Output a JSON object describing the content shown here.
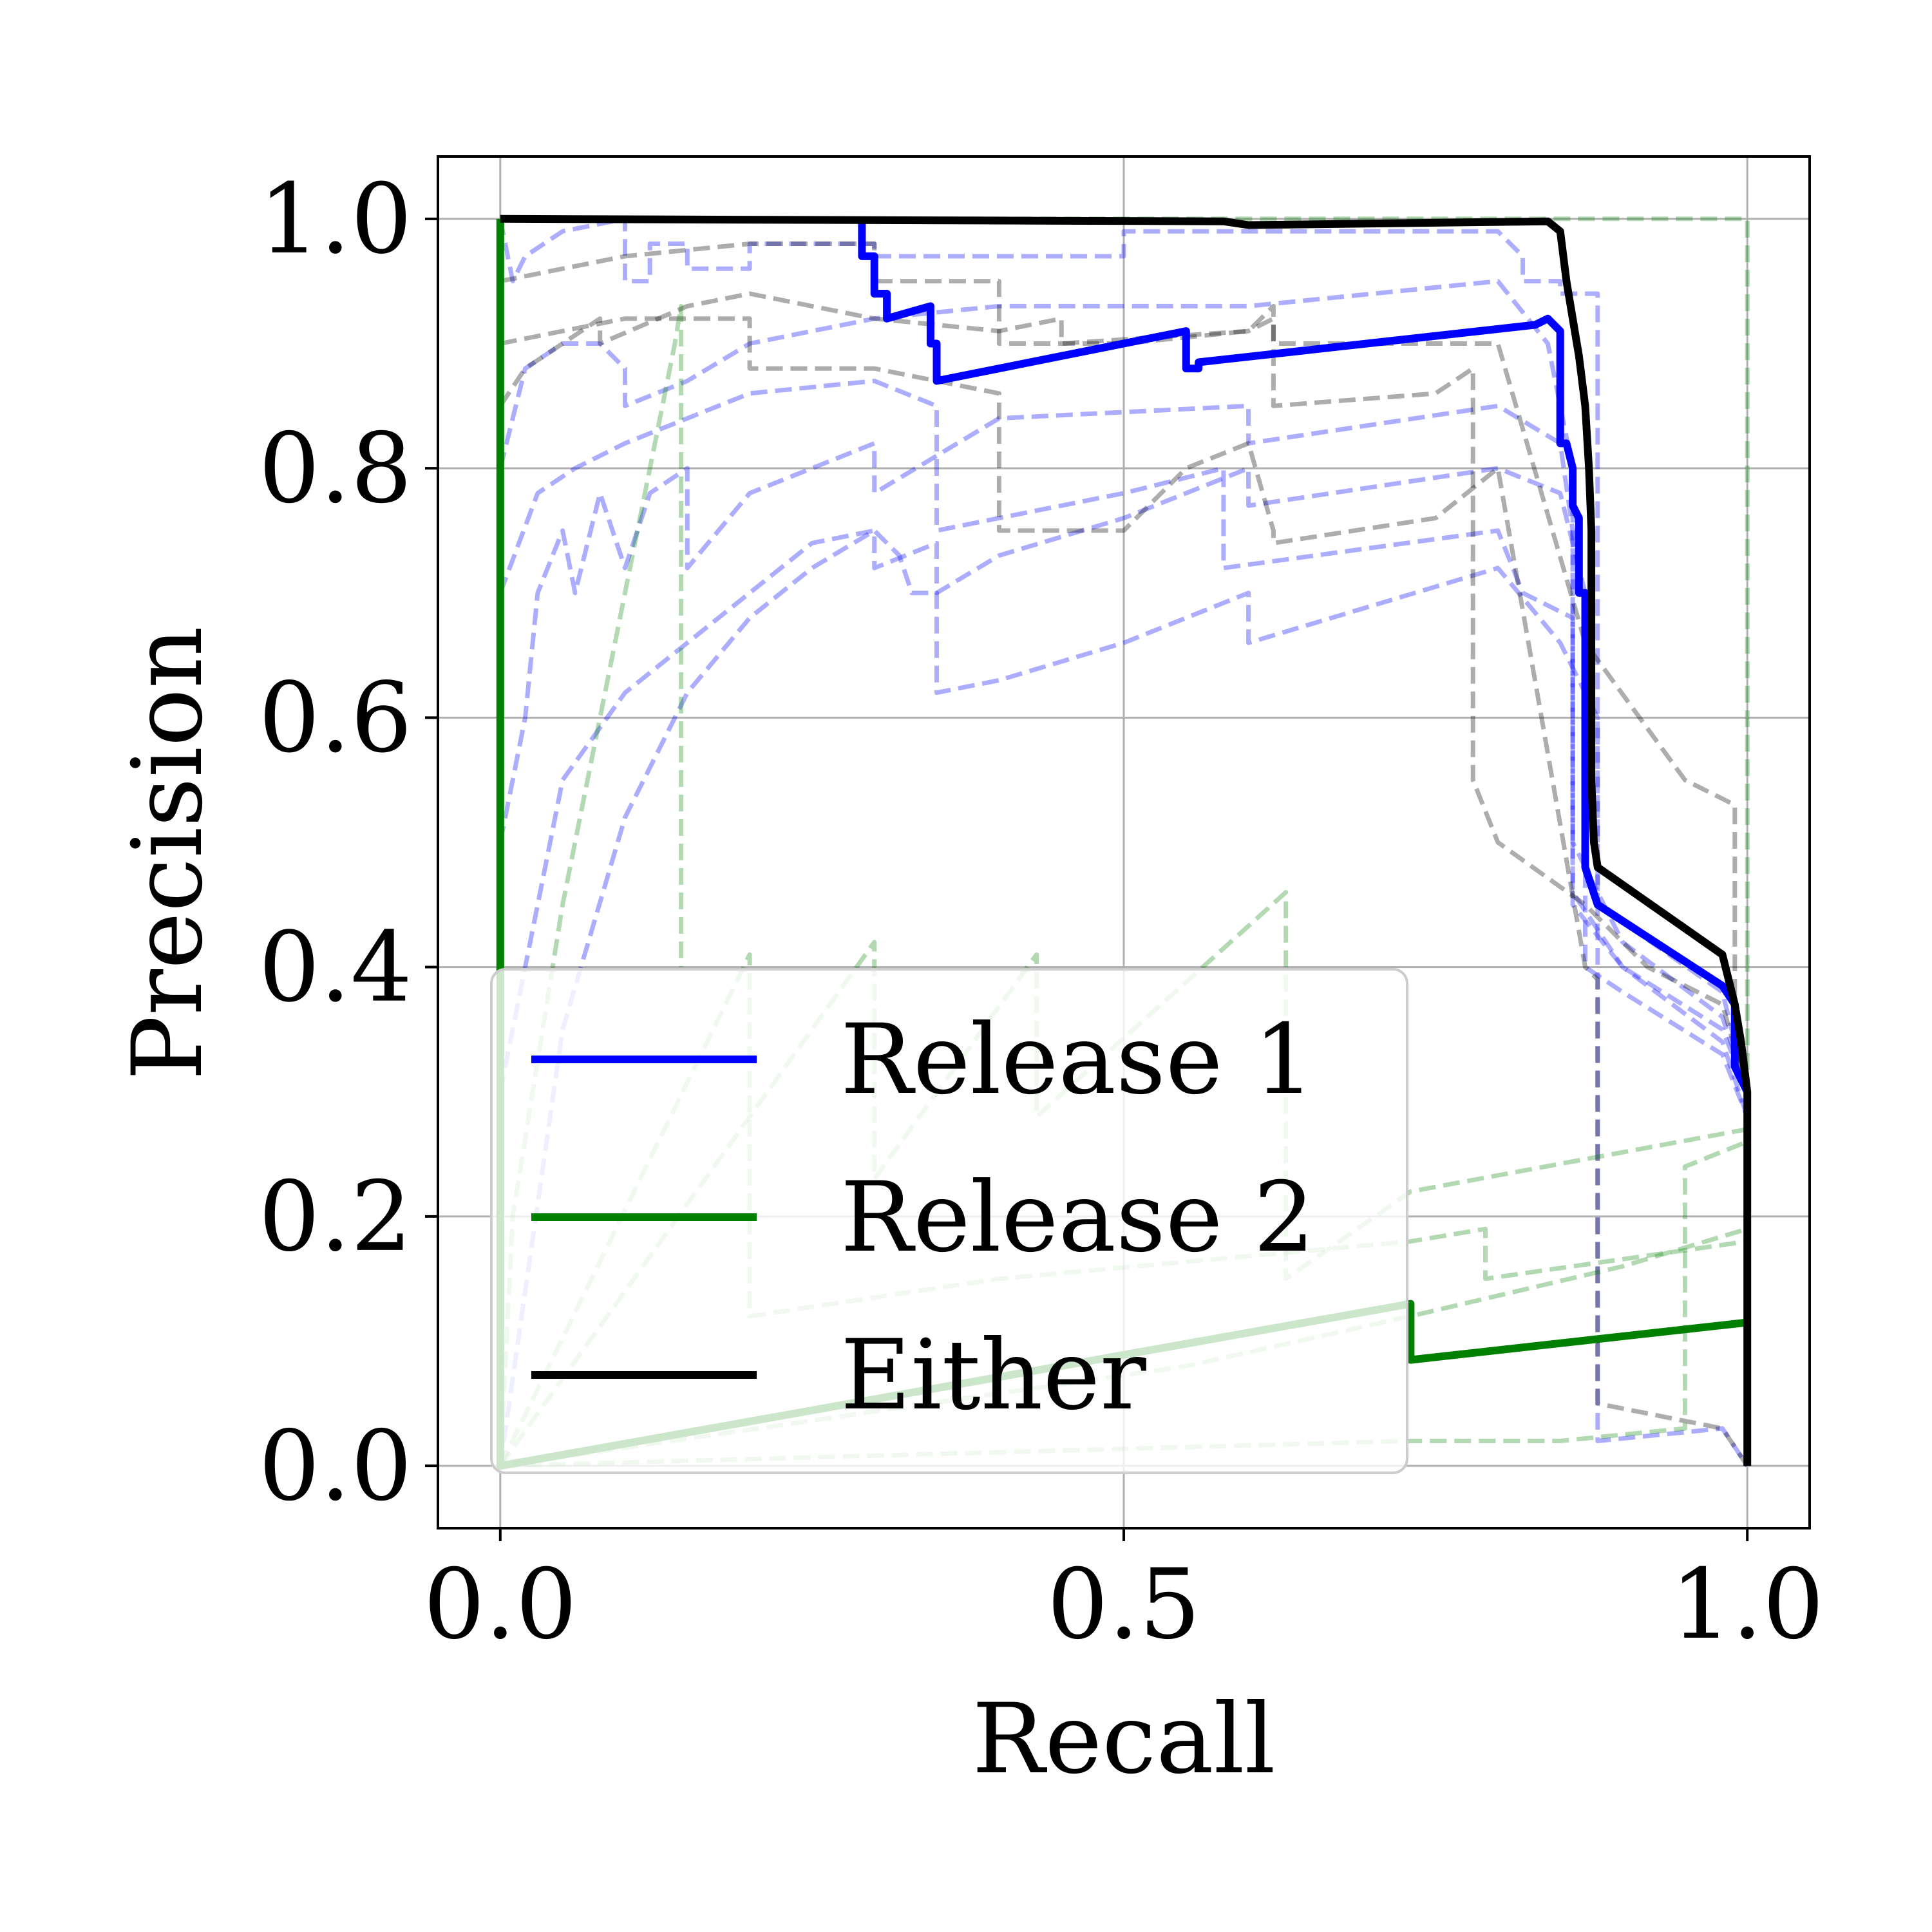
{
  "chart_data": {
    "type": "line",
    "xlabel": "Recall",
    "ylabel": "Precision",
    "xlim": [
      -0.05,
      1.05
    ],
    "ylim": [
      -0.05,
      1.05
    ],
    "xticks": [
      "0.0",
      "0.5",
      "1.0"
    ],
    "xtick_values": [
      0.0,
      0.5,
      1.0
    ],
    "yticks": [
      "0.0",
      "0.2",
      "0.4",
      "0.6",
      "0.8",
      "1.0"
    ],
    "ytick_values": [
      0.0,
      0.2,
      0.4,
      0.6,
      0.8,
      1.0
    ],
    "grid": true,
    "legend_position": "lower-left",
    "colors": {
      "release1": "#0000ff",
      "release2": "#008000",
      "either": "#000000"
    },
    "series": [
      {
        "name": "Release 1",
        "color": "#0000ff",
        "x": [
          0.29,
          0.29,
          0.3,
          0.3,
          0.31,
          0.31,
          0.345,
          0.345,
          0.35,
          0.35,
          0.55,
          0.55,
          0.56,
          0.56,
          0.83,
          0.84,
          0.85,
          0.85,
          0.855,
          0.86,
          0.86,
          0.865,
          0.865,
          0.87,
          0.87,
          0.88,
          0.98,
          0.99,
          0.99,
          1.0
        ],
        "y": [
          1.0,
          0.97,
          0.97,
          0.94,
          0.94,
          0.92,
          0.93,
          0.9,
          0.9,
          0.87,
          0.91,
          0.88,
          0.88,
          0.885,
          0.915,
          0.92,
          0.91,
          0.82,
          0.82,
          0.8,
          0.77,
          0.76,
          0.7,
          0.7,
          0.48,
          0.45,
          0.385,
          0.37,
          0.32,
          0.3
        ]
      },
      {
        "name": "Release 2",
        "color": "#008000",
        "x": [
          0.0,
          0.0,
          0.0,
          0.73,
          0.73,
          0.73,
          1.0
        ],
        "y": [
          1.0,
          0.4,
          0.0,
          0.13,
          0.13,
          0.085,
          0.115
        ]
      },
      {
        "name": "Either",
        "color": "#000000",
        "x": [
          0.0,
          0.58,
          0.6,
          0.84,
          0.85,
          0.855,
          0.86,
          0.865,
          0.87,
          0.873,
          0.875,
          0.875,
          0.877,
          0.88,
          0.88,
          0.98,
          0.99,
          0.995,
          1.0,
          1.0,
          1.0
        ],
        "y": [
          1.0,
          0.998,
          0.995,
          0.998,
          0.99,
          0.95,
          0.92,
          0.89,
          0.85,
          0.8,
          0.75,
          0.55,
          0.5,
          0.48,
          0.48,
          0.41,
          0.37,
          0.34,
          0.3,
          0.15,
          0.0
        ]
      }
    ],
    "background_series": [
      {
        "group": "release1",
        "x": [
          0.0,
          0.01,
          0.02,
          0.05,
          0.1,
          0.1,
          0.12,
          0.12,
          0.15,
          0.15,
          0.2,
          0.2,
          0.3,
          0.3,
          0.5,
          0.5,
          0.6,
          0.8,
          0.82,
          0.82,
          0.85,
          0.85,
          0.88,
          0.88,
          0.98,
          1.0
        ],
        "y": [
          1.0,
          0.95,
          0.97,
          0.99,
          1.0,
          0.95,
          0.95,
          0.98,
          0.98,
          0.96,
          0.96,
          0.98,
          0.98,
          0.97,
          0.97,
          0.99,
          0.99,
          0.99,
          0.97,
          0.95,
          0.95,
          0.94,
          0.94,
          0.45,
          0.38,
          0.3
        ]
      },
      {
        "group": "release1",
        "x": [
          0.0,
          0.02,
          0.05,
          0.08,
          0.1,
          0.1,
          0.15,
          0.2,
          0.3,
          0.4,
          0.5,
          0.6,
          0.7,
          0.8,
          0.84,
          0.86,
          0.86,
          0.9,
          0.98,
          1.0
        ],
        "y": [
          0.8,
          0.88,
          0.9,
          0.9,
          0.88,
          0.85,
          0.87,
          0.9,
          0.92,
          0.93,
          0.93,
          0.93,
          0.94,
          0.95,
          0.9,
          0.8,
          0.46,
          0.4,
          0.34,
          0.28
        ]
      },
      {
        "group": "release1",
        "x": [
          0.0,
          0.02,
          0.03,
          0.05,
          0.06,
          0.08,
          0.1,
          0.12,
          0.15,
          0.15,
          0.2,
          0.25,
          0.3,
          0.3,
          0.4,
          0.6,
          0.6,
          0.8,
          0.85,
          0.86,
          0.86,
          0.9,
          0.98,
          1.0
        ],
        "y": [
          0.5,
          0.6,
          0.7,
          0.75,
          0.7,
          0.78,
          0.72,
          0.78,
          0.8,
          0.72,
          0.78,
          0.8,
          0.82,
          0.78,
          0.84,
          0.85,
          0.82,
          0.85,
          0.82,
          0.75,
          0.45,
          0.4,
          0.35,
          0.3
        ]
      },
      {
        "group": "release1",
        "x": [
          0.0,
          0.05,
          0.1,
          0.15,
          0.2,
          0.25,
          0.3,
          0.3,
          0.35,
          0.35,
          0.4,
          0.5,
          0.6,
          0.6,
          0.8,
          0.85,
          0.87,
          0.87,
          0.9,
          0.98,
          1.0
        ],
        "y": [
          0.3,
          0.55,
          0.62,
          0.66,
          0.7,
          0.74,
          0.75,
          0.72,
          0.74,
          0.7,
          0.73,
          0.76,
          0.8,
          0.77,
          0.8,
          0.78,
          0.7,
          0.4,
          0.38,
          0.33,
          0.28
        ]
      },
      {
        "group": "release1",
        "x": [
          0.0,
          0.05,
          0.1,
          0.15,
          0.2,
          0.25,
          0.3,
          0.32,
          0.33,
          0.35,
          0.35,
          0.4,
          0.5,
          0.6,
          0.6,
          0.8,
          0.85,
          0.88,
          0.88,
          0.88,
          0.98,
          1.0
        ],
        "y": [
          0.0,
          0.35,
          0.52,
          0.62,
          0.68,
          0.72,
          0.75,
          0.73,
          0.7,
          0.7,
          0.62,
          0.63,
          0.66,
          0.7,
          0.66,
          0.72,
          0.66,
          0.6,
          0.3,
          0.02,
          0.03,
          0.0
        ]
      },
      {
        "group": "release1",
        "x": [
          0.0,
          0.03,
          0.06,
          0.1,
          0.15,
          0.2,
          0.3,
          0.35,
          0.35,
          0.4,
          0.5,
          0.58,
          0.58,
          0.8,
          0.82,
          0.86,
          0.86,
          0.9,
          0.98,
          1.0
        ],
        "y": [
          0.7,
          0.78,
          0.8,
          0.82,
          0.84,
          0.86,
          0.87,
          0.85,
          0.75,
          0.76,
          0.78,
          0.8,
          0.72,
          0.75,
          0.7,
          0.68,
          0.5,
          0.42,
          0.36,
          0.3
        ]
      },
      {
        "group": "either",
        "x": [
          0.0,
          0.02,
          0.05,
          0.08,
          0.08,
          0.15,
          0.2,
          0.25,
          0.3,
          0.4,
          0.45,
          0.45,
          0.6,
          0.62,
          0.62,
          0.75,
          0.78,
          0.78,
          0.8,
          0.87,
          0.92,
          0.98,
          1.0
        ],
        "y": [
          0.85,
          0.88,
          0.9,
          0.92,
          0.9,
          0.93,
          0.94,
          0.93,
          0.92,
          0.91,
          0.92,
          0.9,
          0.91,
          0.92,
          0.85,
          0.86,
          0.88,
          0.55,
          0.5,
          0.45,
          0.4,
          0.37,
          0.3
        ]
      },
      {
        "group": "either",
        "x": [
          0.0,
          0.1,
          0.2,
          0.3,
          0.3,
          0.4,
          0.4,
          0.5,
          0.6,
          0.62,
          0.62,
          0.7,
          0.8,
          0.87,
          0.95,
          0.99,
          0.99,
          1.0
        ],
        "y": [
          0.95,
          0.97,
          0.98,
          0.98,
          0.95,
          0.95,
          0.9,
          0.9,
          0.91,
          0.93,
          0.9,
          0.9,
          0.9,
          0.66,
          0.55,
          0.53,
          0.35,
          0.3
        ]
      },
      {
        "group": "either",
        "x": [
          0.0,
          0.1,
          0.2,
          0.2,
          0.3,
          0.4,
          0.4,
          0.5,
          0.55,
          0.6,
          0.62,
          0.62,
          0.75,
          0.8,
          0.87,
          0.88,
          0.88,
          0.98,
          1.0
        ],
        "y": [
          0.9,
          0.92,
          0.92,
          0.88,
          0.88,
          0.86,
          0.75,
          0.75,
          0.8,
          0.82,
          0.75,
          0.74,
          0.76,
          0.8,
          0.4,
          0.39,
          0.05,
          0.03,
          0.0
        ]
      },
      {
        "group": "release2",
        "x": [
          0.0,
          0.01,
          0.05,
          0.08,
          0.1,
          0.12,
          0.14,
          0.145,
          0.145
        ],
        "y": [
          0.0,
          0.2,
          0.45,
          0.6,
          0.7,
          0.8,
          0.9,
          0.93,
          0.4
        ]
      },
      {
        "group": "release2",
        "x": [
          0.0,
          0.3,
          0.3,
          0.43,
          0.43,
          0.63,
          0.63,
          0.73,
          1.0
        ],
        "y": [
          0.0,
          0.42,
          0.23,
          0.41,
          0.28,
          0.46,
          0.15,
          0.22,
          0.27
        ]
      },
      {
        "group": "release2",
        "x": [
          0.0,
          0.2,
          0.2,
          0.4,
          0.73,
          0.79,
          0.79,
          1.0,
          1.0
        ],
        "y": [
          0.0,
          0.41,
          0.12,
          0.15,
          0.18,
          0.19,
          0.15,
          0.18,
          0.02
        ]
      },
      {
        "group": "release2",
        "x": [
          0.0,
          0.55,
          0.73,
          0.9,
          1.0
        ],
        "y": [
          0.0,
          0.08,
          0.12,
          0.16,
          0.19
        ]
      },
      {
        "group": "release2",
        "x": [
          0.0,
          0.73,
          0.85,
          0.95,
          0.95,
          1.0
        ],
        "y": [
          0.0,
          0.02,
          0.02,
          0.03,
          0.24,
          0.26
        ]
      },
      {
        "group": "release2",
        "x": [
          0.0,
          0.0,
          1.0,
          1.0
        ],
        "y": [
          0.0,
          1.0,
          1.0,
          0.0
        ]
      }
    ]
  }
}
